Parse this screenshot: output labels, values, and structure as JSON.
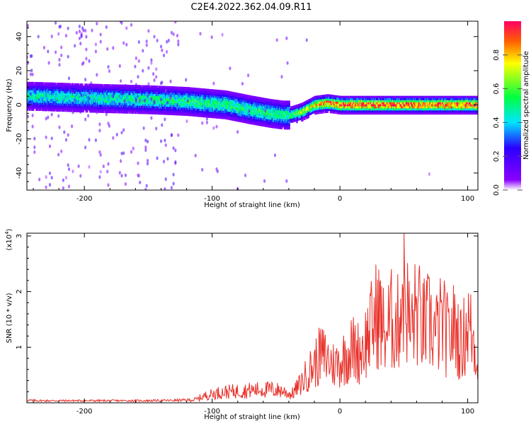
{
  "figure": {
    "title": "C2E4.2022.362.04.09.R11"
  },
  "chart_data": [
    {
      "type": "heatmap",
      "xlabel": "Height of straight line (km)",
      "ylabel": "Frequency (Hz)",
      "xlim": [
        -245,
        108
      ],
      "ylim": [
        -50,
        49
      ],
      "x_ticks": [
        -200,
        -100,
        0,
        100
      ],
      "x_tick_labels": [
        "-200",
        "-100",
        "0",
        "100"
      ],
      "y_ticks": [
        -40,
        -20,
        0,
        20,
        40
      ],
      "y_tick_labels": [
        "-40",
        "-20",
        "0",
        "20",
        "40"
      ],
      "colorbar": {
        "label": "Normalized spectral amplitude",
        "range": [
          0,
          1
        ],
        "ticks": [
          0.0,
          0.2,
          0.4,
          0.6,
          0.8
        ],
        "tick_labels": [
          "0.0",
          "0.2",
          "0.4",
          "0.6",
          "0.8"
        ]
      },
      "ridge": {
        "x": [
          -240,
          -200,
          -150,
          -120,
          -90,
          -70,
          -55,
          -45,
          -38,
          -30,
          -20,
          -10,
          0,
          20,
          40,
          60,
          80,
          100,
          108
        ],
        "frequency": [
          5,
          4,
          3,
          2,
          0,
          -3,
          -5,
          -6,
          -6,
          -4,
          0,
          1,
          0,
          0,
          0,
          0,
          0,
          0,
          0
        ],
        "peak_amplitude": [
          0.45,
          0.45,
          0.48,
          0.5,
          0.5,
          0.5,
          0.5,
          0.48,
          0.55,
          0.65,
          0.75,
          0.85,
          0.9,
          0.9,
          0.9,
          0.9,
          0.9,
          0.9,
          0.9
        ]
      }
    },
    {
      "type": "line",
      "xlabel": "Height of straight line (km)",
      "ylabel": "SNR (10 * v/v)",
      "y_multiplier_label": "(x10",
      "y_multiplier_exp": "4",
      "y_multiplier_close": ")",
      "xlim": [
        -245,
        108
      ],
      "ylim": [
        0,
        3.05
      ],
      "x_ticks": [
        -200,
        -100,
        0,
        100
      ],
      "x_tick_labels": [
        "-200",
        "-100",
        "0",
        "100"
      ],
      "y_ticks": [
        1,
        2,
        3
      ],
      "y_tick_labels": [
        "1",
        "2",
        "3"
      ],
      "color": "#e8312a",
      "series": [
        {
          "x": [
            -245,
            -230,
            -210,
            -190,
            -170,
            -150,
            -130,
            -115,
            -105,
            -95,
            -85,
            -75,
            -65,
            -55,
            -45,
            -38,
            -30,
            -25,
            -20,
            -15,
            -10,
            -5,
            0,
            5,
            10,
            15,
            20,
            25,
            30,
            35,
            40,
            45,
            50,
            55,
            60,
            65,
            70,
            75,
            80,
            85,
            90,
            95,
            100,
            105,
            108
          ],
          "y": [
            0.05,
            0.04,
            0.04,
            0.04,
            0.04,
            0.04,
            0.05,
            0.07,
            0.18,
            0.25,
            0.28,
            0.3,
            0.32,
            0.33,
            0.3,
            0.2,
            0.5,
            0.75,
            0.95,
            1.2,
            1.1,
            0.95,
            1.0,
            1.2,
            1.35,
            1.25,
            1.5,
            1.9,
            2.3,
            1.7,
            2.05,
            1.9,
            3.0,
            1.8,
            2.3,
            1.9,
            2.0,
            1.7,
            2.0,
            1.6,
            1.9,
            1.4,
            2.0,
            1.5,
            0.9
          ]
        }
      ]
    }
  ]
}
